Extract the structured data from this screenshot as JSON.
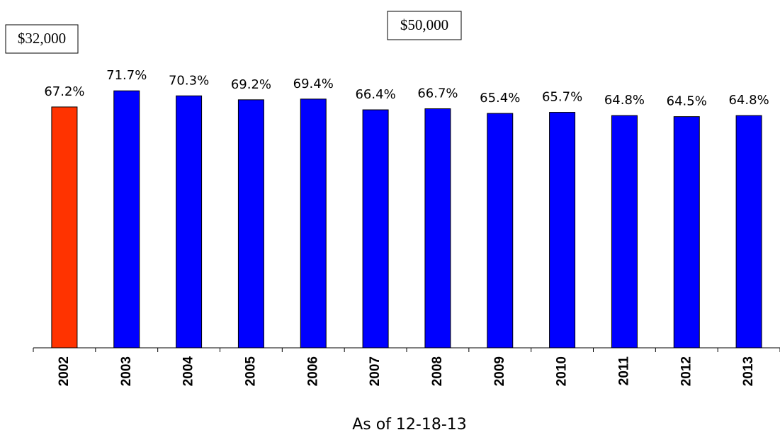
{
  "chart_data": {
    "type": "bar",
    "categories": [
      "2002",
      "2003",
      "2004",
      "2005",
      "2006",
      "2007",
      "2008",
      "2009",
      "2010",
      "2011",
      "2012",
      "2013"
    ],
    "values": [
      67.2,
      71.7,
      70.3,
      69.2,
      69.4,
      66.4,
      66.7,
      65.4,
      65.7,
      64.8,
      64.5,
      64.8
    ],
    "value_labels": [
      "67.2%",
      "71.7%",
      "70.3%",
      "69.2%",
      "69.4%",
      "66.4%",
      "66.7%",
      "65.4%",
      "65.7%",
      "64.8%",
      "64.5%",
      "64.8%"
    ],
    "colors": [
      "#ff3300",
      "#0000ff",
      "#0000ff",
      "#0000ff",
      "#0000ff",
      "#0000ff",
      "#0000ff",
      "#0000ff",
      "#0000ff",
      "#0000ff",
      "#0000ff",
      "#0000ff"
    ],
    "annotations": [
      "$32,000",
      "$50,000"
    ],
    "footnote": "As of 12-18-13"
  }
}
